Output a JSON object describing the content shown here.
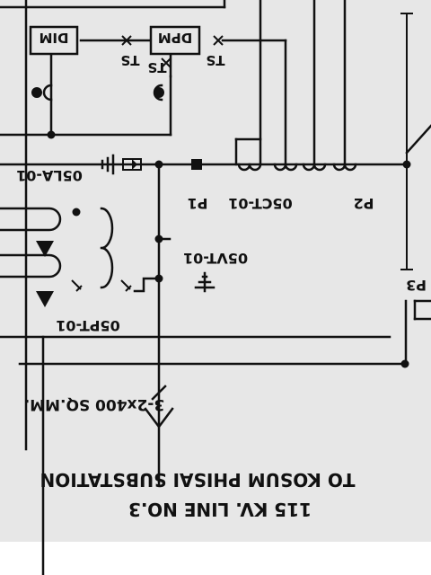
{
  "colors": {
    "background": "#e7e7e7",
    "ink": "#111111",
    "margin": "#ffffff"
  },
  "labels": {
    "dim": "DIM",
    "dpm": "DPM",
    "ts_left": "TS",
    "ts_mid": "TS",
    "ts_right": "TS",
    "arrester": "05LA-01",
    "p1": "P1",
    "ct_group": "05CT-01",
    "p2": "P2",
    "vt": "05VT-01",
    "pt": "05PT-01",
    "p3": "P3",
    "cable": "3-2x400 SQ.MM.",
    "destination": "TO KOSUM PHISAI SUBSTATION",
    "line": "115 KV. LINE NO.3"
  }
}
